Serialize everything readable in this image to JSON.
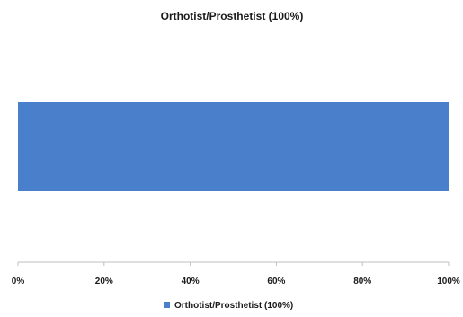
{
  "chart_data": {
    "type": "bar",
    "orientation": "horizontal",
    "stacked": true,
    "title": "Orthotist/Prosthetist (100%)",
    "xlabel": "",
    "ylabel": "",
    "categories": [
      ""
    ],
    "series": [
      {
        "name": "Orthotist/Prosthetist (100%)",
        "values": [
          1.0
        ],
        "color": "#4a7fcb"
      }
    ],
    "xlim": [
      0,
      1
    ],
    "xticks": [
      {
        "value": 0,
        "label": "0%"
      },
      {
        "value": 0.2,
        "label": "20%"
      },
      {
        "value": 0.4,
        "label": "40%"
      },
      {
        "value": 0.6,
        "label": "60%"
      },
      {
        "value": 0.8,
        "label": "80%"
      },
      {
        "value": 1.0,
        "label": "100%"
      }
    ],
    "grid": false,
    "legend_position": "bottom"
  }
}
